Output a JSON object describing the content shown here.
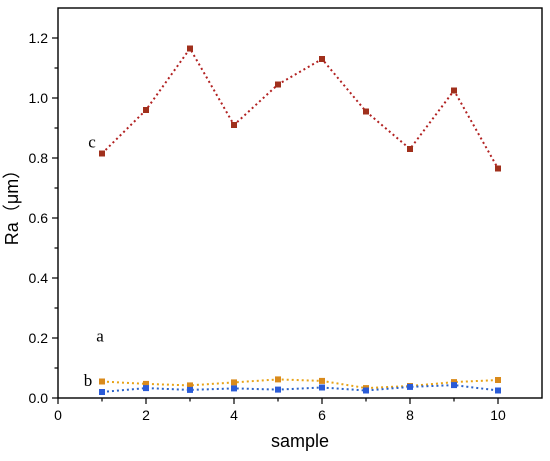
{
  "chart_data": {
    "type": "line",
    "xlabel": "sample",
    "ylabel": "Ra（μm）",
    "xlim": [
      0,
      11
    ],
    "ylim": [
      0,
      1.3
    ],
    "xticks": [
      0,
      2,
      4,
      6,
      8,
      10
    ],
    "xtick_labels": [
      "0",
      "2",
      "4",
      "6",
      "8",
      "10"
    ],
    "yticks": [
      0.0,
      0.2,
      0.4,
      0.6,
      0.8,
      1.0,
      1.2
    ],
    "ytick_labels": [
      "0.0",
      "0.2",
      "0.4",
      "0.6",
      "0.8",
      "1.0",
      "1.2"
    ],
    "grid": false,
    "x": [
      1,
      2,
      3,
      4,
      5,
      6,
      7,
      8,
      9,
      10
    ],
    "series": [
      {
        "name": "c",
        "color": "#b22222",
        "marker_color": "#a0301c",
        "values": [
          0.815,
          0.96,
          1.165,
          0.91,
          1.045,
          1.13,
          0.955,
          0.83,
          1.025,
          0.765
        ]
      },
      {
        "name": "a",
        "color": "#e8a317",
        "marker_color": "#d98a1b",
        "values": [
          0.055,
          0.047,
          0.042,
          0.052,
          0.062,
          0.057,
          0.033,
          0.04,
          0.053,
          0.06
        ]
      },
      {
        "name": "b",
        "color": "#2a62c9",
        "marker_color": "#2a5bd7",
        "values": [
          0.02,
          0.033,
          0.027,
          0.032,
          0.028,
          0.035,
          0.025,
          0.037,
          0.043,
          0.025
        ]
      }
    ]
  }
}
